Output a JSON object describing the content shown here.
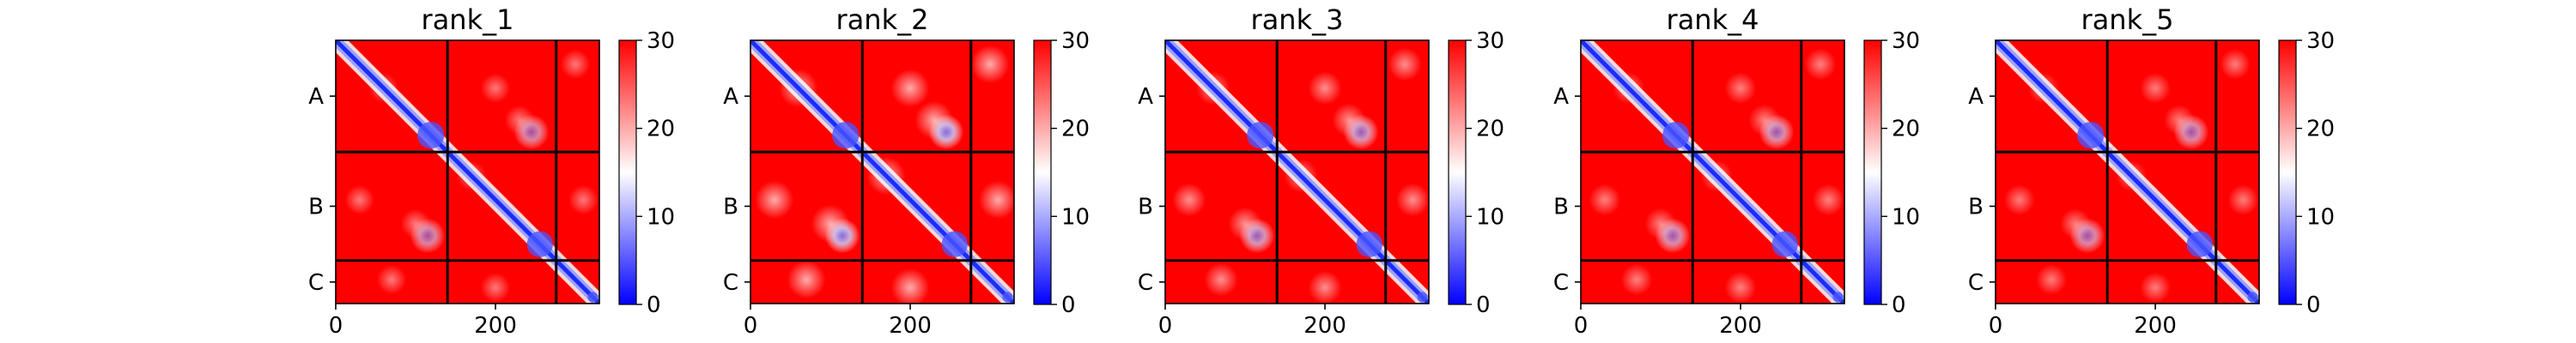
{
  "chart_data": {
    "type": "heatmap",
    "description_colormap": "bwr",
    "colorbar": {
      "ticks": [
        "0",
        "10",
        "20",
        "30"
      ],
      "min": 0,
      "max": 30,
      "colors": {
        "low": "#0000ff",
        "mid": "#ffffff",
        "high": "#ff0000"
      }
    },
    "chain_labels": [
      "A",
      "B",
      "C"
    ],
    "chain_boundaries": [
      0,
      140,
      276,
      330
    ],
    "x_ticks": [
      {
        "value": 0,
        "label": "0"
      },
      {
        "value": 200,
        "label": "200"
      }
    ],
    "panels": [
      {
        "title": "rank_1",
        "intensity": 0.55
      },
      {
        "title": "rank_2",
        "intensity": 1.0
      },
      {
        "title": "rank_3",
        "intensity": 0.75
      },
      {
        "title": "rank_4",
        "intensity": 0.65
      },
      {
        "title": "rank_5",
        "intensity": 0.6
      }
    ]
  }
}
